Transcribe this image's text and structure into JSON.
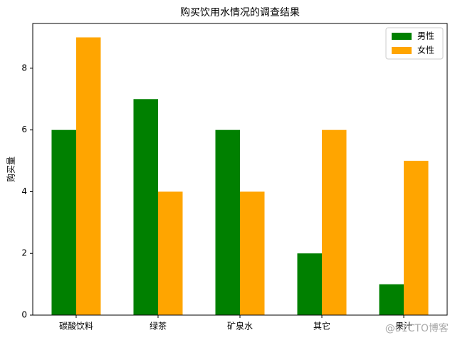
{
  "chart_data": {
    "type": "bar",
    "title": "购买饮用水情况的调查结果",
    "y_label": "购买量",
    "categories": [
      "碳酸饮料",
      "绿茶",
      "矿泉水",
      "其它",
      "果汁"
    ],
    "series": [
      {
        "name": "男性",
        "color": "#008000",
        "values": [
          6,
          7,
          6,
          2,
          1
        ]
      },
      {
        "name": "女性",
        "color": "#ffa500",
        "values": [
          9,
          4,
          4,
          6,
          5
        ]
      }
    ],
    "ylim": [
      0,
      9.45
    ],
    "yticks": [
      0,
      2,
      4,
      6,
      8
    ],
    "legend": "upper right",
    "watermark": "@51CTO博客"
  }
}
